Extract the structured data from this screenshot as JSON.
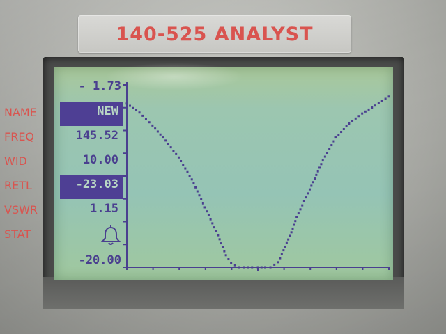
{
  "device": {
    "title": "140-525 ANALYST"
  },
  "side_labels": [
    "NAME",
    "FREQ",
    "WID",
    "RETL",
    "VSWR",
    "STAT"
  ],
  "readouts": {
    "scale_top": "- 1.73",
    "name": "NEW",
    "freq": "145.52",
    "wid": "10.00",
    "retl": "-23.03",
    "vswr": "1.15",
    "stat_icon": "bell-icon",
    "scale_bottom": "-20.00"
  },
  "colors": {
    "label_red": "#d9544f",
    "lcd_ink": "#4a3f8f",
    "lcd_bg": "#9cc6b0"
  },
  "chart_data": {
    "type": "line",
    "title": "",
    "xlabel": "",
    "ylabel": "",
    "ylim": [
      -20.0,
      -1.73
    ],
    "x_center_mhz": 145.52,
    "x_span_mhz": 10.0,
    "xlim": [
      140.52,
      150.52
    ],
    "series": [
      {
        "x": [
          140.52,
          141.0,
          141.5,
          142.0,
          142.5,
          143.0,
          143.5,
          144.0,
          144.3,
          144.5,
          144.8,
          145.0,
          145.3,
          145.52,
          145.8,
          146.0,
          146.3,
          146.5,
          146.8,
          147.0,
          147.5,
          148.0,
          148.5,
          149.0,
          149.5,
          150.0,
          150.52
        ],
        "y": [
          -3.6,
          -4.5,
          -5.8,
          -7.3,
          -9.0,
          -11.2,
          -14.0,
          -16.8,
          -18.8,
          -19.6,
          -20.0,
          -20.0,
          -20.0,
          -20.0,
          -20.0,
          -20.0,
          -19.5,
          -18.3,
          -16.5,
          -15.0,
          -12.2,
          -9.3,
          -7.0,
          -5.6,
          -4.6,
          -3.8,
          -2.9
        ]
      }
    ]
  }
}
